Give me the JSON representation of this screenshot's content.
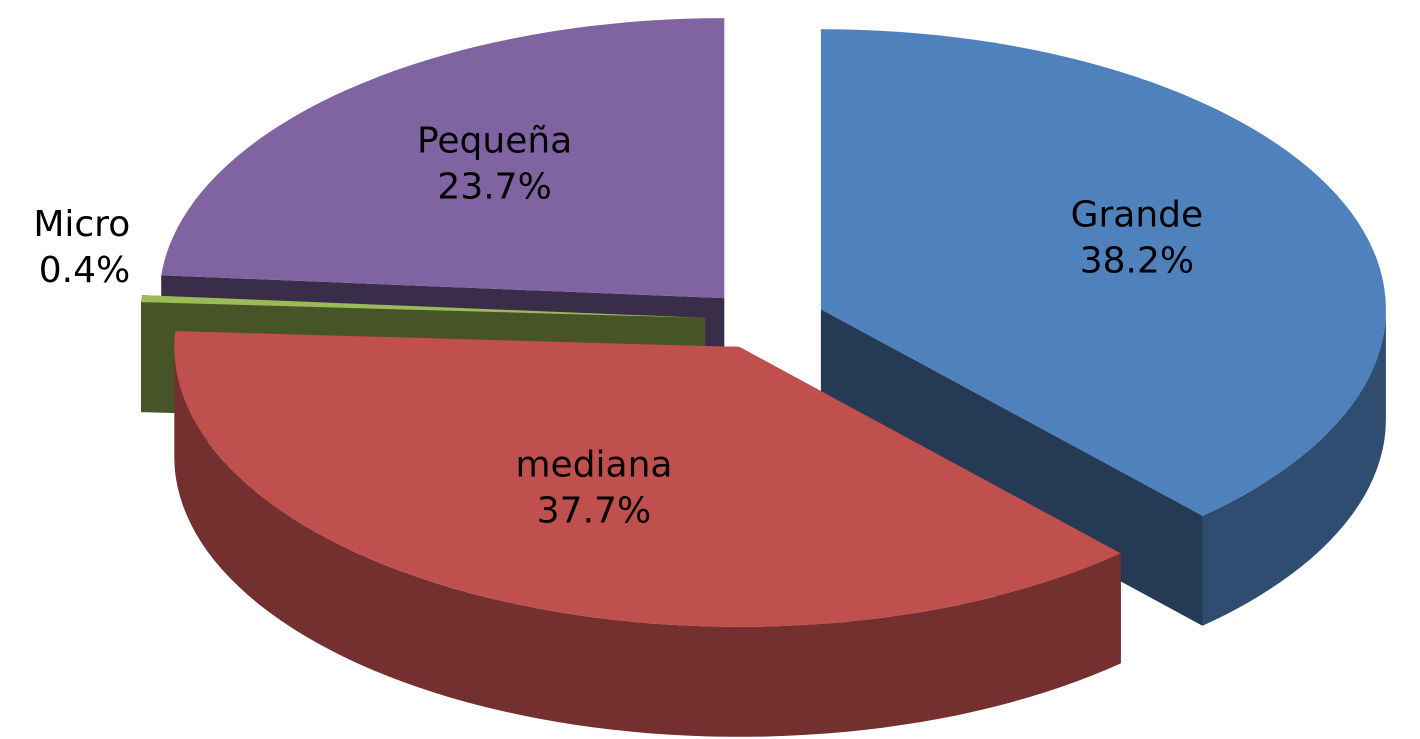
{
  "chart_data": {
    "type": "pie",
    "categories": [
      "Grande",
      "mediana",
      "Micro",
      "Pequeña"
    ],
    "values": [
      38.2,
      37.7,
      0.4,
      23.7
    ],
    "value_labels": [
      "38.2%",
      "37.7%",
      "0.4%",
      "23.7%"
    ],
    "colors": [
      "#4f81bd",
      "#c0504d",
      "#9bbb59",
      "#8064a2"
    ],
    "three_d": true,
    "exploded": true
  }
}
